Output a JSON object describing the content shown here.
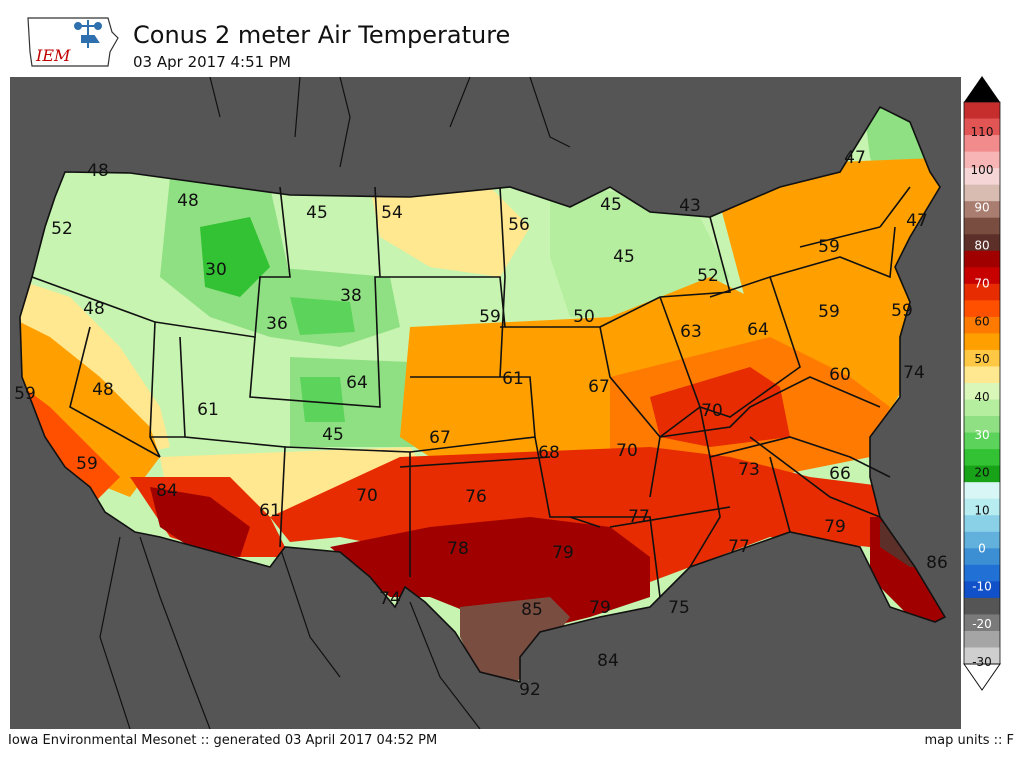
{
  "header": {
    "logo_text": "IEM",
    "title": "Conus 2 meter Air Temperature",
    "subtitle": "03 Apr 2017 4:51 PM"
  },
  "footer": {
    "left": "Iowa Environmental Mesonet :: generated 03 April 2017 04:52 PM",
    "right": "map units :: F"
  },
  "colorbar": {
    "ticks": [
      "110",
      "100",
      "90",
      "80",
      "70",
      "60",
      "50",
      "40",
      "30",
      "20",
      "10",
      "0",
      "-10",
      "-20",
      "-30"
    ],
    "colors": [
      "#000000",
      "#c62d2d",
      "#e25555",
      "#f28c8c",
      "#f7b5b5",
      "#f5d5d5",
      "#d8bcb2",
      "#a97e70",
      "#7a4d41",
      "#5c3028",
      "#a00000",
      "#c70000",
      "#e62c00",
      "#ff5000",
      "#ff7a00",
      "#ffa000",
      "#ffc844",
      "#ffe890",
      "#d9f7b9",
      "#b6eea0",
      "#8fe083",
      "#5cd35a",
      "#33c233",
      "#17a217",
      "#d9f6f6",
      "#b7ecf1",
      "#8ad1e8",
      "#62b1dd",
      "#3d8fd4",
      "#2070d6",
      "#1050c8",
      "#555555",
      "#7a7a7a",
      "#a5a5a5",
      "#cfcfcf",
      "#ffffff"
    ]
  },
  "labels": [
    "48",
    "48",
    "52",
    "45",
    "54",
    "56",
    "45",
    "43",
    "47",
    "47",
    "30",
    "38",
    "36",
    "59",
    "50",
    "45",
    "52",
    "59",
    "48",
    "59",
    "59",
    "48",
    "61",
    "64",
    "61",
    "67",
    "63",
    "64",
    "59",
    "45",
    "67",
    "60",
    "74",
    "68",
    "70",
    "70",
    "59",
    "84",
    "61",
    "70",
    "76",
    "73",
    "66",
    "77",
    "79",
    "78",
    "79",
    "77",
    "86",
    "74",
    "85",
    "79",
    "75",
    "84",
    "92"
  ]
}
